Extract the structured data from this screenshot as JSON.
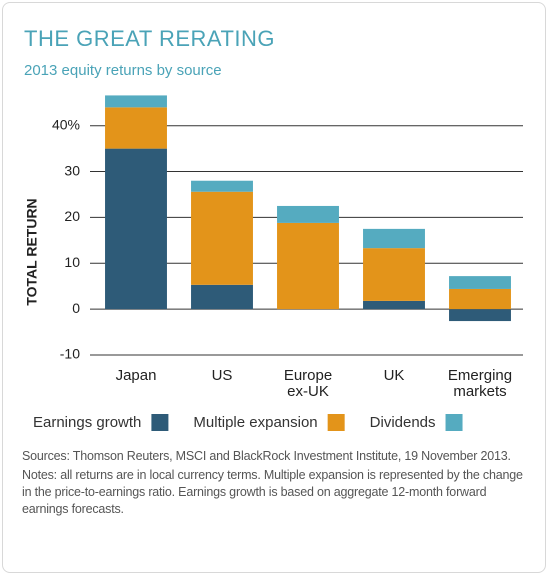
{
  "chart_data": {
    "type": "stacked_bar",
    "title": "THE GREAT RERATING",
    "subtitle": "2013 equity returns by source",
    "y_label": "TOTAL RETURN",
    "categories": [
      "Japan",
      "US",
      "Europe ex-UK",
      "UK",
      "Emerging markets"
    ],
    "series": [
      {
        "name": "Earnings growth",
        "color": "#2e5b78",
        "values": [
          35,
          5.3,
          0,
          1.8,
          -2.6
        ]
      },
      {
        "name": "Multiple expansion",
        "color": "#e3941a",
        "values": [
          9,
          20.3,
          18.8,
          11.5,
          4.4
        ]
      },
      {
        "name": "Dividends",
        "color": "#55abc0",
        "values": [
          2.6,
          2.4,
          3.7,
          4.2,
          2.8
        ]
      }
    ],
    "ylim": [
      -10,
      48
    ],
    "yticks": [
      -10,
      0,
      10,
      20,
      30,
      {
        "value": 40,
        "label": "40%"
      }
    ],
    "grid": true,
    "legend": "bottom",
    "notes": [
      "Sources: Thomson Reuters, MSCI and BlackRock Investment Institute, 19 November 2013.",
      "Notes: all returns are in local currency terms. Multiple expansion is represented by the change in the price-to-earnings ratio. Earnings growth is based on aggregate 12-month forward earnings forecasts."
    ]
  }
}
